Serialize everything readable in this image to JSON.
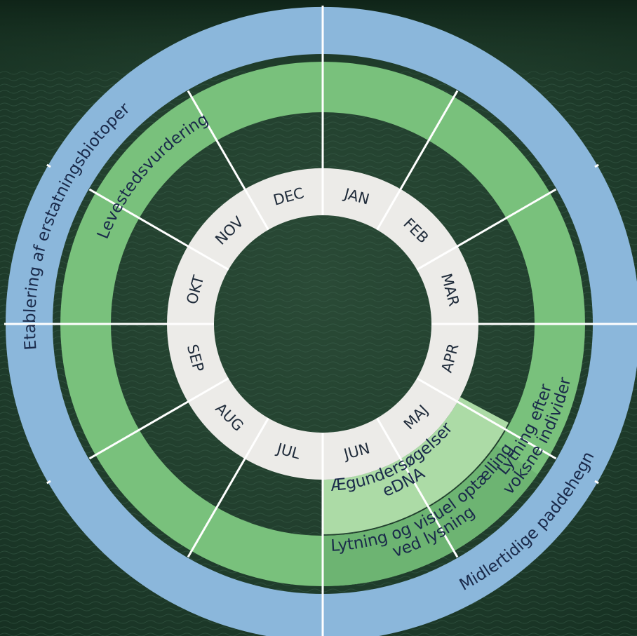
{
  "months": [
    "JAN",
    "FEB",
    "MAR",
    "APR",
    "MAJ",
    "JUN",
    "JUL",
    "AUG",
    "SEP",
    "OKT",
    "NOV",
    "DEC"
  ],
  "activities": {
    "outer": {
      "top": "Etablering af erstatningsbiotoper",
      "bottom": "Midlertidige paddehegn"
    },
    "middle": {
      "left": "Levestedsvurdering",
      "right": [
        "Lytning efter",
        "voksne individer"
      ],
      "bottom": [
        "Lytning og visuel optælling",
        "ved lysning"
      ]
    },
    "inner": [
      "Ægundersøgelser,",
      "eDNA"
    ]
  },
  "colors": {
    "outer_ring": "#8bb7db",
    "middle_ring": "#79c17c",
    "middle_ring_dark": "#6db472",
    "inner_band": "#acdba6",
    "month_ring": "#ecebe8",
    "background": "#1f3b2a",
    "divider": "#ffffff",
    "text": "#1a2a4a"
  }
}
